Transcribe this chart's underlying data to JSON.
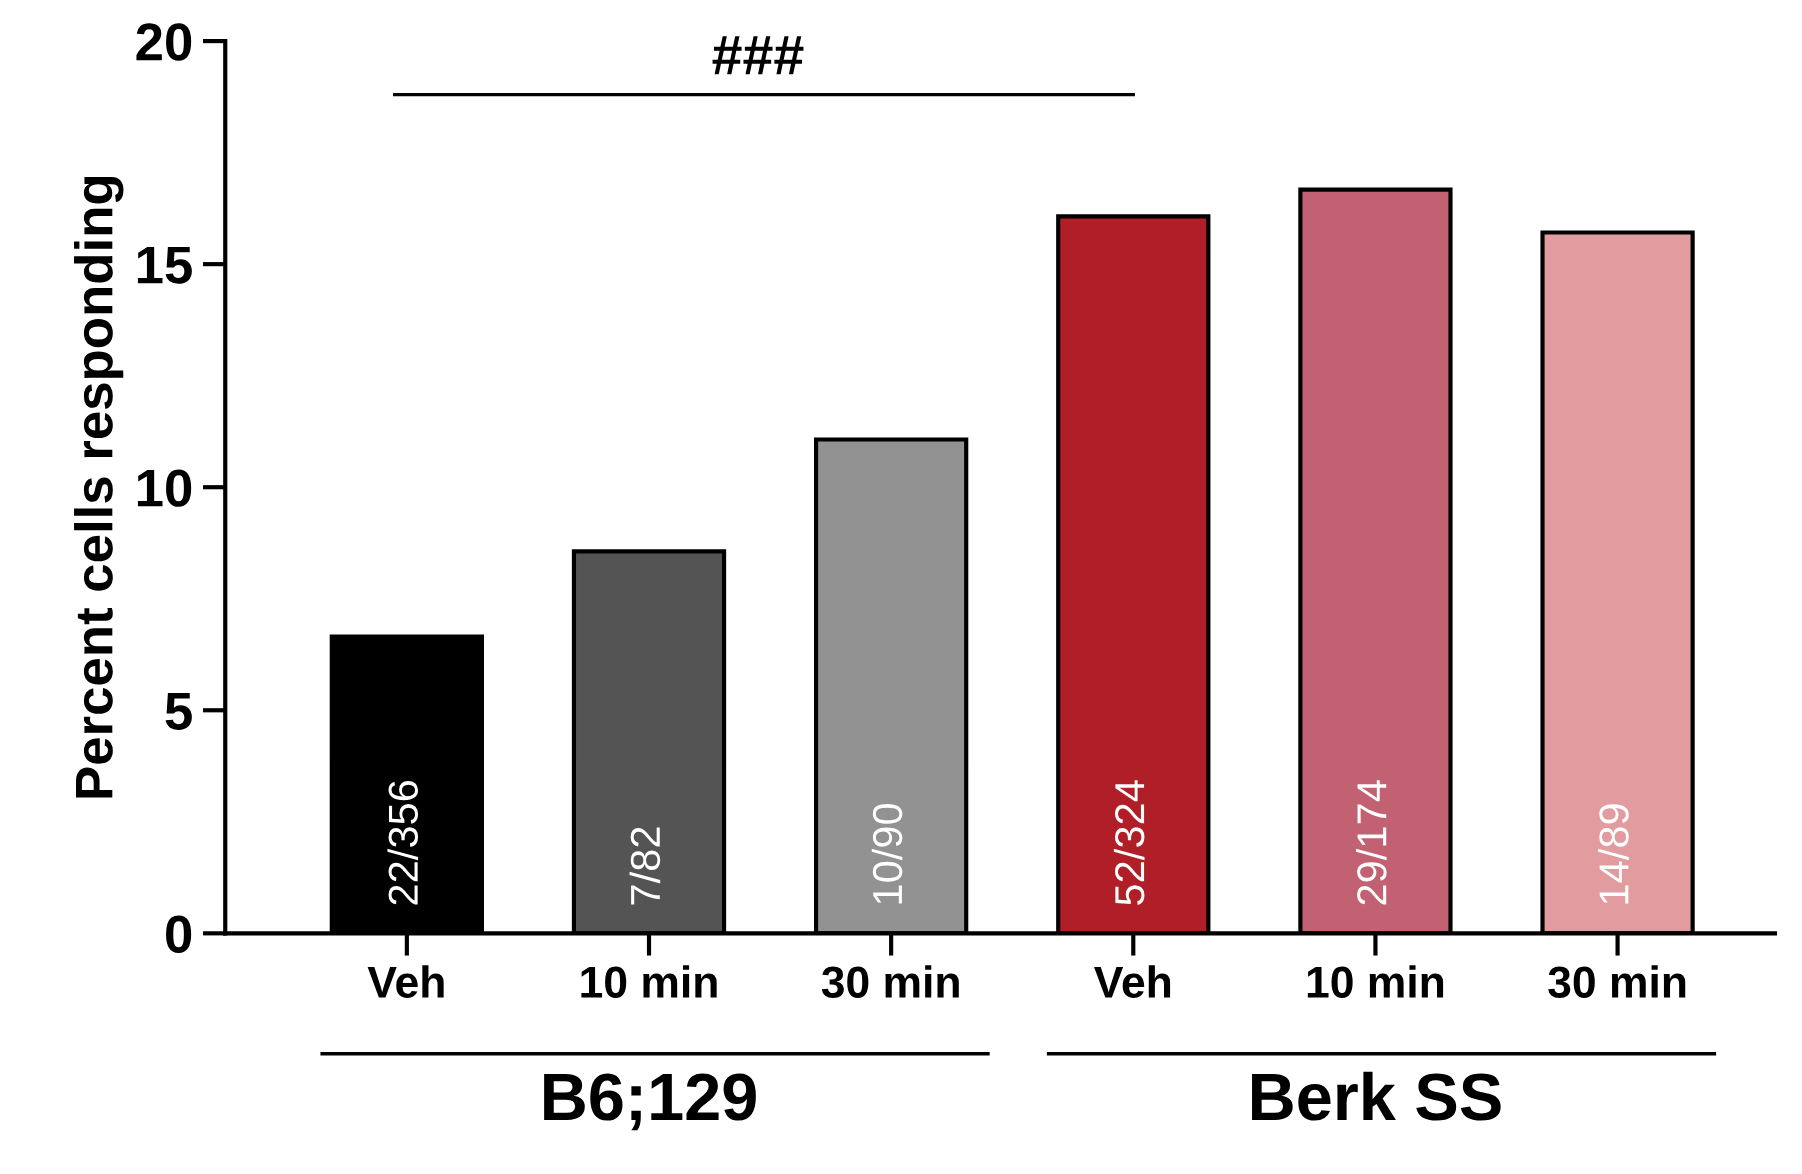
{
  "chart_data": {
    "type": "bar",
    "ylabel": "Percent cells responding",
    "categories": [
      "Veh",
      "10 min",
      "30 min",
      "Veh",
      "10 min",
      "30 min"
    ],
    "values": [
      6.65,
      8.56,
      11.07,
      16.07,
      16.67,
      15.71
    ],
    "colors": [
      "#000000",
      "#545454",
      "#929292",
      "#b01f27",
      "#c16172",
      "#e29c9f"
    ],
    "value_labels": [
      "22/356",
      "7/82",
      "10/90",
      "52/324",
      "29/174",
      "14/89"
    ],
    "ylim": [
      0,
      20
    ],
    "yticks": [
      0,
      5,
      10,
      15,
      20
    ],
    "annotations": [
      "###",
      "B6;129",
      "Berk SS"
    ],
    "grid": false,
    "legend": false
  }
}
